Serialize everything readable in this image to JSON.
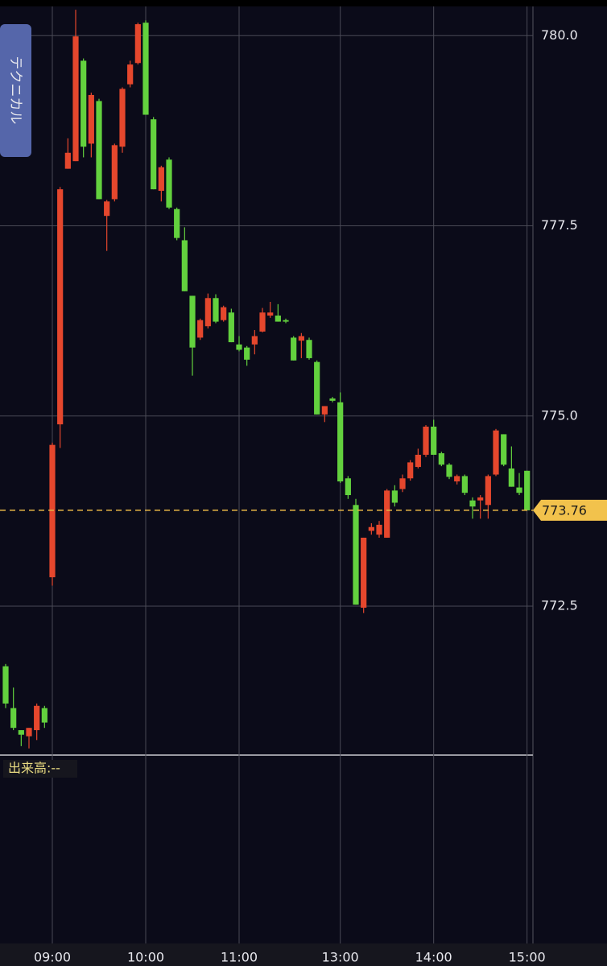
{
  "chart_data": {
    "type": "candlestick",
    "technical_button": "テクニカル",
    "volume_label": "出来高:--",
    "categories": [
      null,
      null,
      null,
      null,
      null,
      null,
      "09:00",
      null,
      null,
      null,
      null,
      null,
      null,
      null,
      null,
      null,
      null,
      null,
      "10:00",
      null,
      null,
      null,
      null,
      null,
      null,
      null,
      null,
      null,
      null,
      null,
      "11:00",
      null,
      null,
      null,
      null,
      null,
      null,
      null,
      null,
      null,
      null,
      null,
      null,
      "13:00",
      null,
      null,
      null,
      null,
      null,
      null,
      null,
      null,
      null,
      null,
      null,
      "14:00",
      null,
      null,
      null,
      null,
      null,
      null,
      null,
      null,
      null,
      null,
      null,
      "15:00"
    ],
    "open": [
      771.71,
      771.16,
      770.87,
      770.79,
      770.87,
      771.16,
      772.88,
      774.89,
      778.25,
      778.35,
      779.67,
      778.58,
      779.14,
      777.63,
      777.85,
      778.54,
      779.36,
      779.64,
      780.17,
      778.9,
      777.96,
      778.37,
      777.72,
      777.31,
      776.58,
      776.03,
      776.18,
      776.55,
      776.26,
      776.36,
      775.94,
      775.9,
      775.94,
      776.11,
      776.32,
      776.32,
      776.26,
      776.03,
      775.99,
      776.0,
      775.71,
      775.02,
      775.23,
      775.18,
      774.18,
      773.83,
      772.48,
      773.49,
      773.44,
      773.4,
      774.02,
      774.04,
      774.18,
      774.33,
      774.49,
      774.86,
      774.51,
      774.36,
      774.14,
      774.21,
      773.89,
      773.89,
      773.83,
      774.23,
      774.76,
      774.31,
      774.06,
      774.28
    ],
    "high": [
      771.74,
      771.43,
      770.87,
      770.9,
      771.22,
      771.19,
      774.65,
      778.01,
      778.65,
      780.34,
      779.7,
      779.25,
      779.17,
      777.84,
      778.58,
      779.32,
      779.67,
      780.17,
      780.2,
      778.93,
      778.29,
      778.4,
      777.74,
      777.48,
      776.58,
      776.28,
      776.61,
      776.6,
      776.45,
      776.41,
      776.05,
      775.92,
      776.13,
      776.42,
      776.5,
      776.47,
      776.28,
      776.05,
      776.09,
      776.03,
      775.73,
      775.13,
      775.25,
      775.31,
      774.21,
      773.91,
      773.4,
      773.59,
      773.62,
      774.04,
      774.09,
      774.23,
      774.42,
      774.57,
      774.88,
      774.95,
      774.53,
      774.38,
      774.23,
      774.23,
      773.93,
      773.96,
      774.23,
      774.83,
      774.76,
      774.6,
      774.25,
      774.28
    ],
    "low": [
      771.16,
      770.87,
      770.66,
      770.63,
      770.74,
      770.9,
      772.77,
      774.58,
      778.25,
      778.35,
      778.4,
      778.4,
      777.85,
      777.17,
      777.82,
      778.46,
      779.32,
      779.62,
      778.96,
      777.98,
      777.82,
      777.72,
      777.31,
      776.64,
      775.53,
      776.0,
      776.15,
      776.22,
      776.24,
      775.97,
      775.85,
      775.66,
      775.81,
      776.1,
      776.29,
      776.24,
      776.22,
      775.73,
      775.76,
      775.74,
      775.02,
      774.92,
      775.18,
      774.12,
      773.91,
      772.52,
      772.41,
      773.44,
      773.4,
      773.4,
      773.81,
      774.0,
      774.15,
      774.31,
      774.46,
      774.49,
      774.34,
      774.17,
      774.1,
      773.96,
      773.65,
      773.65,
      773.65,
      774.21,
      774.34,
      774.07,
      773.96,
      773.76
    ],
    "close": [
      771.22,
      770.9,
      770.81,
      770.9,
      771.19,
      770.97,
      774.62,
      777.98,
      778.46,
      779.99,
      778.54,
      779.22,
      777.85,
      777.82,
      778.56,
      779.3,
      779.62,
      780.15,
      778.96,
      777.98,
      778.27,
      777.74,
      777.34,
      776.64,
      775.9,
      776.26,
      776.55,
      776.24,
      776.43,
      775.97,
      775.87,
      775.74,
      776.05,
      776.36,
      776.36,
      776.24,
      776.24,
      775.73,
      776.05,
      775.76,
      775.02,
      775.13,
      775.2,
      774.14,
      773.96,
      772.52,
      773.4,
      773.54,
      773.57,
      774.02,
      773.86,
      774.18,
      774.39,
      774.49,
      774.86,
      774.49,
      774.36,
      774.2,
      774.21,
      773.99,
      773.81,
      773.93,
      774.21,
      774.81,
      774.36,
      774.07,
      773.99,
      773.76
    ],
    "up_color": "#e5472d",
    "down_color": "#63d13e",
    "current_price": 773.76,
    "ylim": [
      770.5,
      780.5
    ],
    "yticks": [
      772.5,
      {
        "value": 775,
        "label": "775.0"
      },
      777.5,
      {
        "value": 780,
        "label": "780.0"
      }
    ],
    "grid": true
  }
}
